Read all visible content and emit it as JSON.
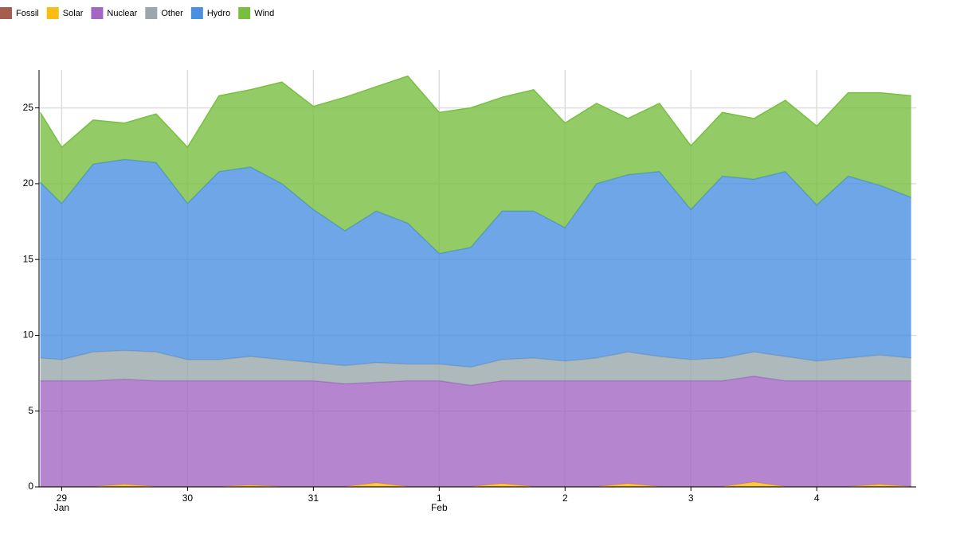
{
  "chart_data": {
    "type": "stacked_area",
    "x": [
      -0.17,
      0,
      0.25,
      0.5,
      0.75,
      1,
      1.25,
      1.5,
      1.75,
      2,
      2.25,
      2.5,
      2.75,
      3,
      3.25,
      3.5,
      3.75,
      4,
      4.25,
      4.5,
      4.75,
      5,
      5.25,
      5.5,
      5.75,
      6,
      6.25,
      6.5,
      6.75
    ],
    "xlim": [
      -0.18,
      6.79
    ],
    "xticks": [
      {
        "value": 0,
        "label": "29"
      },
      {
        "value": 1,
        "label": "30"
      },
      {
        "value": 2,
        "label": "31"
      },
      {
        "value": 3,
        "label": "1"
      },
      {
        "value": 4,
        "label": "2"
      },
      {
        "value": 5,
        "label": "3"
      },
      {
        "value": 6,
        "label": "4"
      }
    ],
    "month_labels": [
      {
        "value": 0,
        "label": "Jan"
      },
      {
        "value": 3,
        "label": "Feb"
      }
    ],
    "ylim": [
      0,
      27.5
    ],
    "yticks": [
      0,
      5,
      10,
      15,
      20,
      25
    ],
    "grid": true,
    "legend_position": "top-left",
    "series": [
      {
        "name": "Fossil",
        "color": "#a65c4e",
        "values": [
          0.02,
          0.02,
          0.02,
          0.02,
          0.02,
          0.02,
          0.02,
          0.02,
          0.02,
          0.02,
          0.02,
          0.02,
          0.02,
          0.02,
          0.02,
          0.02,
          0.02,
          0.02,
          0.02,
          0.02,
          0.02,
          0.02,
          0.02,
          0.02,
          0.02,
          0.02,
          0.02,
          0.02,
          0.02
        ]
      },
      {
        "name": "Solar",
        "color": "#fbbc14",
        "values": [
          0,
          0,
          0,
          0.15,
          0,
          0,
          0,
          0.1,
          0,
          0,
          0,
          0.25,
          0,
          0,
          0,
          0.2,
          0,
          0,
          0,
          0.2,
          0,
          0,
          0,
          0.3,
          0,
          0,
          0,
          0.15,
          0
        ]
      },
      {
        "name": "Nuclear",
        "color": "#a366c4",
        "values": [
          6.98,
          6.98,
          6.98,
          6.93,
          6.98,
          6.98,
          6.98,
          6.88,
          6.98,
          6.98,
          6.78,
          6.63,
          6.98,
          6.98,
          6.68,
          6.78,
          6.98,
          6.98,
          6.98,
          6.78,
          6.98,
          6.98,
          6.98,
          6.98,
          6.98,
          6.98,
          6.98,
          6.83,
          6.98
        ]
      },
      {
        "name": "Other",
        "color": "#9aa8aa",
        "values": [
          1.5,
          1.4,
          1.9,
          1.9,
          1.9,
          1.4,
          1.4,
          1.6,
          1.4,
          1.2,
          1.2,
          1.3,
          1.1,
          1.1,
          1.2,
          1.4,
          1.5,
          1.3,
          1.5,
          1.9,
          1.6,
          1.4,
          1.5,
          1.6,
          1.6,
          1.3,
          1.5,
          1.7,
          1.5
        ]
      },
      {
        "name": "Hydro",
        "color": "#4a90e2",
        "values": [
          11.6,
          10.3,
          12.4,
          12.6,
          12.5,
          10.3,
          12.4,
          12.5,
          11.6,
          10.1,
          8.9,
          10.0,
          9.3,
          7.3,
          7.9,
          9.8,
          9.7,
          8.8,
          11.5,
          11.7,
          12.2,
          9.9,
          12.0,
          11.4,
          12.2,
          10.3,
          12.0,
          11.2,
          10.6
        ]
      },
      {
        "name": "Wind",
        "color": "#78bf40",
        "values": [
          4.6,
          3.7,
          2.9,
          2.4,
          3.2,
          3.7,
          5.0,
          5.1,
          6.7,
          6.8,
          8.8,
          8.2,
          9.7,
          9.3,
          9.2,
          7.5,
          8.0,
          6.9,
          5.3,
          3.7,
          4.5,
          4.2,
          4.2,
          4.0,
          4.7,
          5.2,
          5.5,
          6.1,
          6.7
        ]
      }
    ]
  }
}
